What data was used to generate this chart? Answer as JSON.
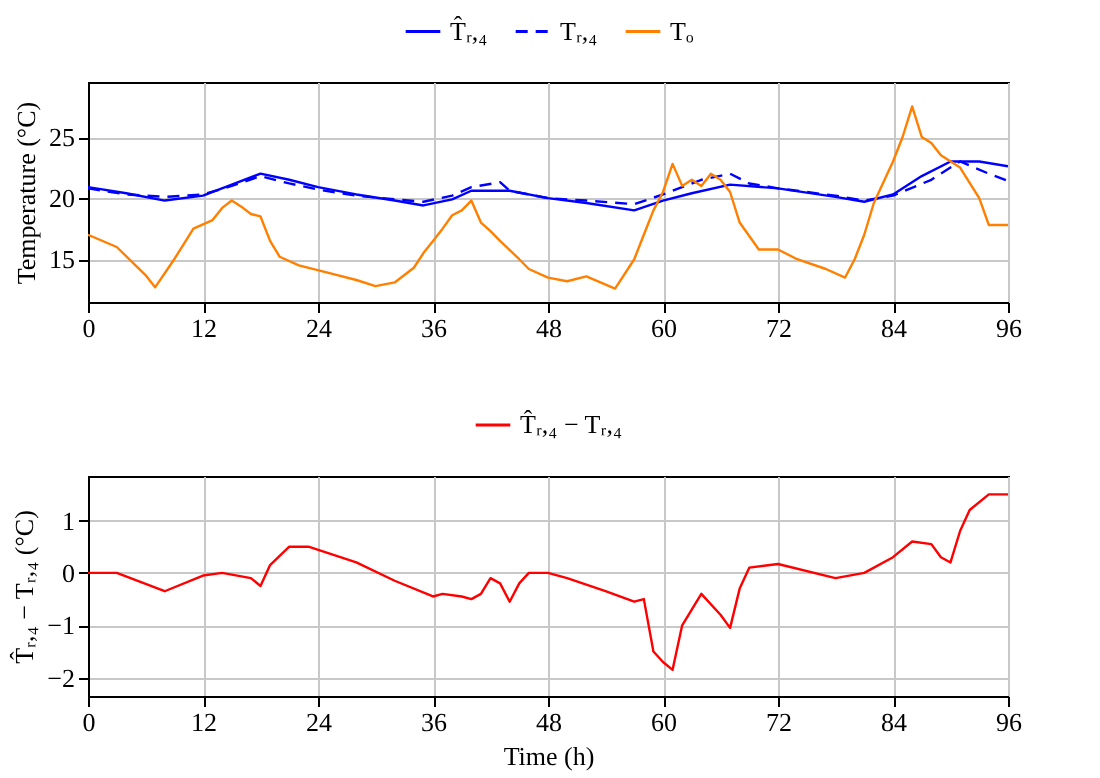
{
  "chart_data": [
    {
      "type": "line",
      "ylabel": "Temperature (°C)",
      "legend": "top",
      "grid": true,
      "xlim": [
        0,
        96
      ],
      "xticks": [
        0,
        12,
        24,
        36,
        48,
        60,
        72,
        84,
        96
      ],
      "ylim": [
        11.5,
        29.5
      ],
      "yticks": [
        15,
        20,
        25
      ],
      "series": [
        {
          "name": "T̂ᵣ,₄",
          "color": "#0000ff",
          "line_style": "solid",
          "x": [
            0,
            4,
            8,
            12,
            15,
            18,
            21,
            24,
            28,
            32,
            35,
            38,
            40,
            44,
            48,
            52,
            57,
            60,
            63,
            67,
            72,
            78,
            81,
            84,
            87,
            90,
            93,
            96
          ],
          "values": [
            20.9,
            20.4,
            19.8,
            20.2,
            21.1,
            22.0,
            21.5,
            20.9,
            20.3,
            19.8,
            19.4,
            19.9,
            20.6,
            20.6,
            20.0,
            19.6,
            19.0,
            19.8,
            20.4,
            21.1,
            20.8,
            20.1,
            19.7,
            20.3,
            21.8,
            23.0,
            23.0,
            22.6
          ]
        },
        {
          "name": "Tᵣ,₄",
          "color": "#0000ff",
          "line_style": "dashed",
          "x": [
            0,
            4,
            8,
            12,
            15,
            18,
            21,
            24,
            28,
            32,
            35,
            38,
            40,
            43,
            44,
            48,
            52,
            57,
            60,
            64,
            67,
            69,
            72,
            78,
            81,
            84,
            88,
            91,
            94,
            96
          ],
          "values": [
            20.8,
            20.3,
            20.1,
            20.3,
            21.0,
            21.8,
            21.2,
            20.7,
            20.2,
            19.9,
            19.7,
            20.2,
            20.9,
            21.3,
            20.6,
            20.0,
            19.8,
            19.5,
            20.3,
            21.5,
            22.0,
            21.2,
            20.8,
            20.2,
            19.8,
            20.2,
            21.5,
            23.0,
            22.0,
            21.4
          ]
        },
        {
          "name": "Tₒ",
          "color": "#ff8000",
          "line_style": "solid",
          "x": [
            0,
            3,
            6,
            7,
            9,
            11,
            13,
            14,
            15,
            16,
            17,
            18,
            19,
            20,
            22,
            25,
            28,
            30,
            32,
            34,
            35,
            36,
            37,
            38,
            39,
            40,
            41,
            42,
            43,
            45,
            46,
            48,
            50,
            52,
            55,
            57,
            58,
            59,
            60,
            61,
            62,
            63,
            64,
            65,
            66,
            67,
            68,
            70,
            72,
            74,
            77,
            79,
            80,
            81,
            82,
            84,
            85,
            86,
            87,
            88,
            89,
            91,
            93,
            94,
            96
          ],
          "values": [
            17.0,
            16.0,
            13.7,
            12.7,
            15.0,
            17.5,
            18.2,
            19.2,
            19.8,
            19.3,
            18.7,
            18.5,
            16.5,
            15.2,
            14.5,
            13.9,
            13.3,
            12.8,
            13.1,
            14.3,
            15.5,
            16.5,
            17.5,
            18.6,
            19.0,
            19.8,
            18.0,
            17.3,
            16.5,
            15.0,
            14.2,
            13.5,
            13.2,
            13.6,
            12.6,
            15.0,
            17.0,
            19.0,
            20.5,
            22.8,
            21.0,
            21.5,
            21.0,
            22.0,
            21.5,
            20.5,
            18.0,
            15.8,
            15.8,
            15.0,
            14.2,
            13.5,
            15.0,
            17.0,
            19.6,
            23.0,
            25.0,
            27.5,
            25.0,
            24.5,
            23.5,
            22.5,
            20.0,
            17.8,
            17.8
          ]
        }
      ]
    },
    {
      "type": "line",
      "xlabel": "Time (h)",
      "ylabel": "T̂ᵣ,₄ − Tᵣ,₄ (°C)",
      "legend": "top",
      "grid": true,
      "xlim": [
        0,
        96
      ],
      "xticks": [
        0,
        12,
        24,
        36,
        48,
        60,
        72,
        84,
        96
      ],
      "ylim": [
        -2.35,
        1.85
      ],
      "yticks": [
        -2,
        -1,
        0,
        1
      ],
      "series": [
        {
          "name": "T̂ᵣ,₄ − Tᵣ,₄",
          "color": "#ff0000",
          "line_style": "solid",
          "x": [
            0,
            3,
            8,
            12,
            14,
            17,
            18,
            19,
            21,
            23,
            28,
            32,
            36,
            37,
            39,
            40,
            41,
            42,
            43,
            44,
            45,
            46,
            48,
            50,
            54,
            57,
            58,
            59,
            60,
            61,
            62,
            63,
            64,
            66,
            67,
            68,
            69,
            72,
            78,
            81,
            84,
            86,
            88,
            89,
            90,
            91,
            92,
            94,
            96
          ],
          "values": [
            0.0,
            0.0,
            -0.35,
            -0.05,
            0.0,
            -0.1,
            -0.25,
            0.15,
            0.5,
            0.5,
            0.2,
            -0.15,
            -0.45,
            -0.4,
            -0.45,
            -0.5,
            -0.4,
            -0.1,
            -0.2,
            -0.55,
            -0.2,
            0.0,
            0.0,
            -0.1,
            -0.35,
            -0.55,
            -0.5,
            -1.5,
            -1.7,
            -1.85,
            -1.0,
            -0.7,
            -0.4,
            -0.8,
            -1.05,
            -0.3,
            0.1,
            0.17,
            -0.1,
            0.0,
            0.3,
            0.6,
            0.55,
            0.3,
            0.2,
            0.8,
            1.2,
            1.5,
            1.5
          ]
        }
      ]
    }
  ]
}
